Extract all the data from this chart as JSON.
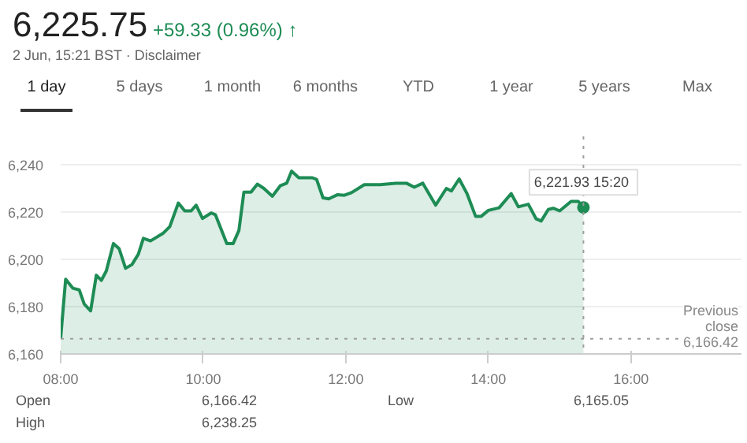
{
  "chart_data": {
    "type": "area",
    "title": "6,225.75",
    "subtitle": "+59.33 (0.96%) ↑",
    "annotations": [
      "2 Jun, 15:21 BST · Disclaimer",
      "1 day",
      "5 days",
      "1 month",
      "6 months",
      "YTD",
      "1 year",
      "5 years",
      "Max",
      "Open",
      "6,166.42",
      "Low",
      "6,165.05",
      "High",
      "6,238.25",
      {
        "text": "6,221.93  15:20",
        "x": 15.333,
        "y": 6221.93
      }
    ],
    "x": [
      8.0,
      8.07,
      8.17,
      8.26,
      8.33,
      8.42,
      8.5,
      8.57,
      8.64,
      8.74,
      8.82,
      8.91,
      9.0,
      9.09,
      9.16,
      9.26,
      9.44,
      9.53,
      9.65,
      9.74,
      9.83,
      9.9,
      9.99,
      10.11,
      10.17,
      10.33,
      10.42,
      10.5,
      10.57,
      10.67,
      10.76,
      10.85,
      10.97,
      11.08,
      11.17,
      11.24,
      11.34,
      11.53,
      11.59,
      11.68,
      11.76,
      11.88,
      11.98,
      12.08,
      12.26,
      12.48,
      12.7,
      12.85,
      12.96,
      13.08,
      13.26,
      13.41,
      13.48,
      13.59,
      13.7,
      13.82,
      13.9,
      14.0,
      14.15,
      14.32,
      14.42,
      14.56,
      14.67,
      14.74,
      14.84,
      14.91,
      15.0,
      15.16,
      15.26,
      15.333
    ],
    "series": [
      {
        "color": "#1e8c55",
        "values": [
          6166.7,
          6191.6,
          6187.8,
          6187.1,
          6181.1,
          6178.2,
          6193.3,
          6191.1,
          6195.1,
          6206.7,
          6204.5,
          6196.2,
          6197.8,
          6202.2,
          6208.9,
          6207.8,
          6211.1,
          6213.8,
          6223.8,
          6220.5,
          6220.5,
          6222.9,
          6217.3,
          6219.6,
          6218.9,
          6206.7,
          6206.7,
          6212.2,
          6228.4,
          6228.4,
          6231.8,
          6230.0,
          6226.7,
          6231.1,
          6232.2,
          6237.3,
          6234.5,
          6234.5,
          6233.8,
          6226.0,
          6225.6,
          6227.3,
          6227.1,
          6228.2,
          6231.6,
          6231.6,
          6232.2,
          6232.2,
          6230.5,
          6232.2,
          6222.9,
          6230.0,
          6228.9,
          6234.0,
          6227.8,
          6218.2,
          6218.2,
          6220.7,
          6221.8,
          6227.8,
          6222.2,
          6223.3,
          6217.1,
          6216.2,
          6221.1,
          6221.6,
          6220.5,
          6224.5,
          6224.5,
          6221.93
        ]
      }
    ],
    "xlim": [
      8,
      17.55
    ],
    "ylim": [
      6160,
      6252
    ],
    "xticks": [
      {
        "value": 8,
        "label": "08:00"
      },
      {
        "value": 10,
        "label": "10:00"
      },
      {
        "value": 12,
        "label": "12:00"
      },
      {
        "value": 14,
        "label": "14:00"
      },
      {
        "value": 16,
        "label": "16:00"
      }
    ],
    "yticks": [
      {
        "value": 6160,
        "label": "6,160"
      },
      {
        "value": 6180,
        "label": "6,180"
      },
      {
        "value": 6200,
        "label": "6,200"
      },
      {
        "value": 6220,
        "label": "6,220"
      },
      {
        "value": 6240,
        "label": "6,240"
      }
    ],
    "ref_lines": [
      {
        "axis": "y",
        "value": 6166.42,
        "label": "Previous\nclose\n6,166.42",
        "color": "#9e9e9e",
        "line_style": "dotted"
      },
      {
        "axis": "x",
        "value": 15.333,
        "color": "#9e9e9e",
        "line_style": "dotted"
      }
    ],
    "grid": "y",
    "marker": "none",
    "line_style": "solid"
  }
}
